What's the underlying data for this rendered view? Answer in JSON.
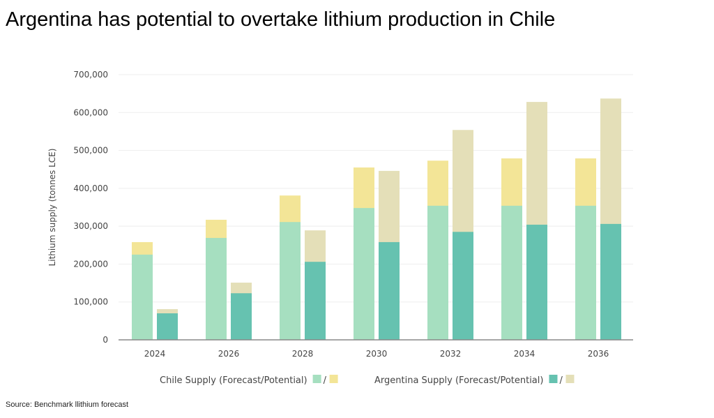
{
  "title": "Argentina has potential to overtake lithium production in Chile",
  "source": "Source: Benchmark llithium forecast",
  "chart_data": {
    "type": "bar",
    "stacked_pairs": true,
    "categories": [
      "2024",
      "2026",
      "2028",
      "2030",
      "2032",
      "2034",
      "2036"
    ],
    "ylabel": "Lithium supply (tonnes LCE)",
    "ylim": [
      0,
      700000
    ],
    "yticks": [
      0,
      100000,
      200000,
      300000,
      400000,
      500000,
      600000,
      700000
    ],
    "ytick_labels": [
      "0",
      "100,000",
      "200,000",
      "300,000",
      "400,000",
      "500,000",
      "600,000",
      "700,000"
    ],
    "grid": true,
    "legend_position": "bottom",
    "legend": [
      {
        "label": "Chile Supply (Forecast/Potential)",
        "sep": "/"
      },
      {
        "label": "Argentina Supply (Forecast/Potential)",
        "sep": "/"
      }
    ],
    "series": [
      {
        "name": "Chile Supply (Forecast)",
        "group": 0,
        "color": "#a6dfc0",
        "values": [
          225000,
          269000,
          311000,
          348000,
          354000,
          354000,
          354000
        ]
      },
      {
        "name": "Chile Supply (Potential)",
        "group": 0,
        "color": "#f3e597",
        "values": [
          258000,
          317000,
          381000,
          455000,
          473000,
          479000,
          479000
        ]
      },
      {
        "name": "Argentina Supply (Forecast)",
        "group": 1,
        "color": "#66c2b0",
        "values": [
          70000,
          123000,
          206000,
          258000,
          285000,
          304000,
          306000
        ]
      },
      {
        "name": "Argentina Supply (Potential)",
        "group": 1,
        "color": "#e4dfb8",
        "values": [
          81000,
          151000,
          289000,
          446000,
          554000,
          628000,
          637000
        ]
      }
    ]
  }
}
